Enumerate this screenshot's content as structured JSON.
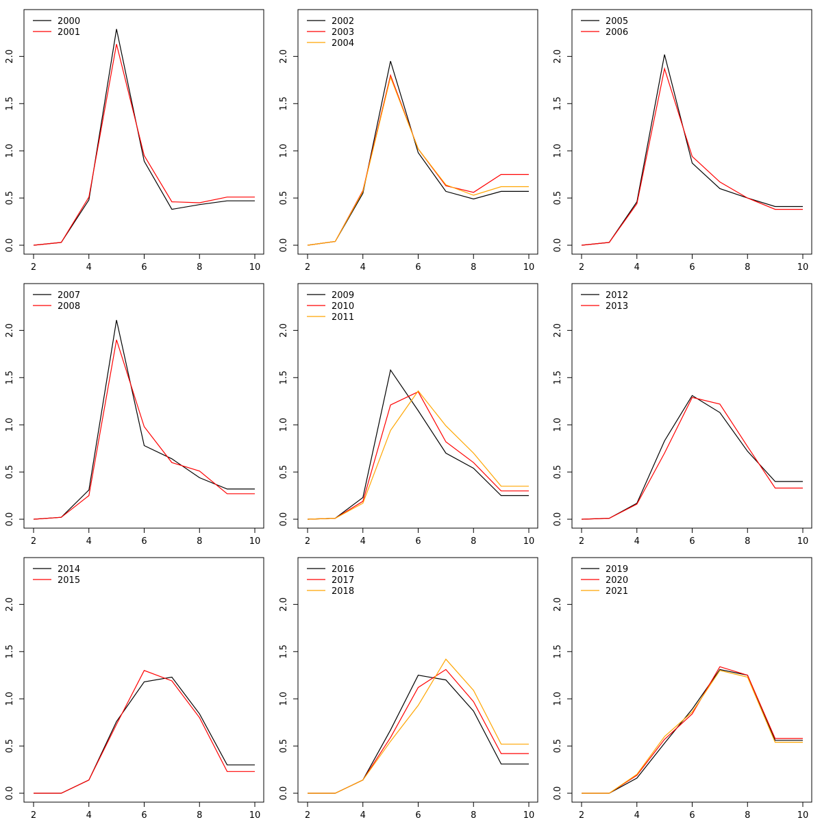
{
  "colors": {
    "black": "#000000",
    "red": "#ff0000",
    "orange": "#ffa500"
  },
  "chart_data": [
    {
      "type": "line",
      "title": "",
      "xlabel": "",
      "ylabel": "",
      "xlim": [
        2,
        10
      ],
      "ylim": [
        0,
        2.3
      ],
      "xticks": [
        "2",
        "4",
        "6",
        "8",
        "10"
      ],
      "yticks": [
        "0.0",
        "0.5",
        "1.0",
        "1.5",
        "2.0"
      ],
      "grid": false,
      "legend": "top-left",
      "x": [
        2,
        3,
        4,
        5,
        6,
        7,
        8,
        9,
        10
      ],
      "series": [
        {
          "name": "2000",
          "color": "#000000",
          "values": [
            0.0,
            0.03,
            0.48,
            2.29,
            0.89,
            0.38,
            0.43,
            0.47,
            0.47
          ]
        },
        {
          "name": "2001",
          "color": "#ff0000",
          "values": [
            0.0,
            0.03,
            0.51,
            2.13,
            0.95,
            0.46,
            0.45,
            0.51,
            0.51
          ]
        }
      ]
    },
    {
      "type": "line",
      "title": "",
      "xlabel": "",
      "ylabel": "",
      "xlim": [
        2,
        10
      ],
      "ylim": [
        0,
        2.3
      ],
      "xticks": [
        "2",
        "4",
        "6",
        "8",
        "10"
      ],
      "yticks": [
        "0.0",
        "0.5",
        "1.0",
        "1.5",
        "2.0"
      ],
      "grid": false,
      "legend": "top-left",
      "x": [
        2,
        3,
        4,
        5,
        6,
        7,
        8,
        9,
        10
      ],
      "series": [
        {
          "name": "2002",
          "color": "#000000",
          "values": [
            0.0,
            0.04,
            0.55,
            1.95,
            0.98,
            0.57,
            0.49,
            0.57,
            0.57
          ]
        },
        {
          "name": "2003",
          "color": "#ff0000",
          "values": [
            0.0,
            0.04,
            0.58,
            1.8,
            1.02,
            0.63,
            0.56,
            0.75,
            0.75
          ]
        },
        {
          "name": "2004",
          "color": "#ffa500",
          "values": [
            0.0,
            0.04,
            0.57,
            1.78,
            1.02,
            0.64,
            0.53,
            0.62,
            0.62
          ]
        }
      ]
    },
    {
      "type": "line",
      "title": "",
      "xlabel": "",
      "ylabel": "",
      "xlim": [
        2,
        10
      ],
      "ylim": [
        0,
        2.3
      ],
      "xticks": [
        "2",
        "4",
        "6",
        "8",
        "10"
      ],
      "yticks": [
        "0.0",
        "0.5",
        "1.0",
        "1.5",
        "2.0"
      ],
      "grid": false,
      "legend": "top-left",
      "x": [
        2,
        3,
        4,
        5,
        6,
        7,
        8,
        9,
        10
      ],
      "series": [
        {
          "name": "2005",
          "color": "#000000",
          "values": [
            0.0,
            0.03,
            0.46,
            2.02,
            0.87,
            0.6,
            0.5,
            0.41,
            0.41
          ]
        },
        {
          "name": "2006",
          "color": "#ff0000",
          "values": [
            0.0,
            0.03,
            0.44,
            1.87,
            0.94,
            0.67,
            0.5,
            0.38,
            0.38
          ]
        }
      ]
    },
    {
      "type": "line",
      "title": "",
      "xlabel": "",
      "ylabel": "",
      "xlim": [
        2,
        10
      ],
      "ylim": [
        0,
        2.3
      ],
      "xticks": [
        "2",
        "4",
        "6",
        "8",
        "10"
      ],
      "yticks": [
        "0.0",
        "0.5",
        "1.0",
        "1.5",
        "2.0"
      ],
      "grid": false,
      "legend": "top-left",
      "x": [
        2,
        3,
        4,
        5,
        6,
        7,
        8,
        9,
        10
      ],
      "series": [
        {
          "name": "2007",
          "color": "#000000",
          "values": [
            0.0,
            0.02,
            0.31,
            2.11,
            0.78,
            0.64,
            0.44,
            0.32,
            0.32
          ]
        },
        {
          "name": "2008",
          "color": "#ff0000",
          "values": [
            0.0,
            0.02,
            0.25,
            1.9,
            0.98,
            0.6,
            0.51,
            0.27,
            0.27
          ]
        }
      ]
    },
    {
      "type": "line",
      "title": "",
      "xlabel": "",
      "ylabel": "",
      "xlim": [
        2,
        10
      ],
      "ylim": [
        0,
        2.3
      ],
      "xticks": [
        "2",
        "4",
        "6",
        "8",
        "10"
      ],
      "yticks": [
        "0.0",
        "0.5",
        "1.0",
        "1.5",
        "2.0"
      ],
      "grid": false,
      "legend": "top-left",
      "x": [
        2,
        3,
        4,
        5,
        6,
        7,
        8,
        9,
        10
      ],
      "series": [
        {
          "name": "2009",
          "color": "#000000",
          "values": [
            0.0,
            0.01,
            0.23,
            1.58,
            1.15,
            0.7,
            0.54,
            0.25,
            0.25
          ]
        },
        {
          "name": "2010",
          "color": "#ff0000",
          "values": [
            0.0,
            0.01,
            0.19,
            1.21,
            1.35,
            0.82,
            0.6,
            0.3,
            0.3
          ]
        },
        {
          "name": "2011",
          "color": "#ffa500",
          "values": [
            0.0,
            0.01,
            0.17,
            0.94,
            1.36,
            0.99,
            0.7,
            0.35,
            0.35
          ]
        }
      ]
    },
    {
      "type": "line",
      "title": "",
      "xlabel": "",
      "ylabel": "",
      "xlim": [
        2,
        10
      ],
      "ylim": [
        0,
        2.3
      ],
      "xticks": [
        "2",
        "4",
        "6",
        "8",
        "10"
      ],
      "yticks": [
        "0.0",
        "0.5",
        "1.0",
        "1.5",
        "2.0"
      ],
      "grid": false,
      "legend": "top-left",
      "x": [
        2,
        3,
        4,
        5,
        6,
        7,
        8,
        9,
        10
      ],
      "series": [
        {
          "name": "2012",
          "color": "#000000",
          "values": [
            0.0,
            0.01,
            0.17,
            0.83,
            1.31,
            1.13,
            0.72,
            0.4,
            0.4
          ]
        },
        {
          "name": "2013",
          "color": "#ff0000",
          "values": [
            0.0,
            0.01,
            0.16,
            0.7,
            1.29,
            1.22,
            0.77,
            0.33,
            0.33
          ]
        }
      ]
    },
    {
      "type": "line",
      "title": "",
      "xlabel": "",
      "ylabel": "",
      "xlim": [
        2,
        10
      ],
      "ylim": [
        0,
        2.3
      ],
      "xticks": [
        "2",
        "4",
        "6",
        "8",
        "10"
      ],
      "yticks": [
        "0.0",
        "0.5",
        "1.0",
        "1.5",
        "2.0"
      ],
      "grid": false,
      "legend": "top-left",
      "x": [
        2,
        3,
        4,
        5,
        6,
        7,
        8,
        9,
        10
      ],
      "series": [
        {
          "name": "2014",
          "color": "#000000",
          "values": [
            0.0,
            0.0,
            0.14,
            0.76,
            1.18,
            1.23,
            0.84,
            0.3,
            0.3
          ]
        },
        {
          "name": "2015",
          "color": "#ff0000",
          "values": [
            0.0,
            0.0,
            0.14,
            0.73,
            1.3,
            1.19,
            0.8,
            0.23,
            0.23
          ]
        }
      ]
    },
    {
      "type": "line",
      "title": "",
      "xlabel": "",
      "ylabel": "",
      "xlim": [
        2,
        10
      ],
      "ylim": [
        0,
        2.3
      ],
      "xticks": [
        "2",
        "4",
        "6",
        "8",
        "10"
      ],
      "yticks": [
        "0.0",
        "0.5",
        "1.0",
        "1.5",
        "2.0"
      ],
      "grid": false,
      "legend": "top-left",
      "x": [
        2,
        3,
        4,
        5,
        6,
        7,
        8,
        9,
        10
      ],
      "series": [
        {
          "name": "2016",
          "color": "#000000",
          "values": [
            0.0,
            0.0,
            0.14,
            0.67,
            1.25,
            1.2,
            0.87,
            0.31,
            0.31
          ]
        },
        {
          "name": "2017",
          "color": "#ff0000",
          "values": [
            0.0,
            0.0,
            0.14,
            0.59,
            1.12,
            1.31,
            0.97,
            0.42,
            0.42
          ]
        },
        {
          "name": "2018",
          "color": "#ffa500",
          "values": [
            0.0,
            0.0,
            0.14,
            0.55,
            0.93,
            1.42,
            1.09,
            0.52,
            0.52
          ]
        }
      ]
    },
    {
      "type": "line",
      "title": "",
      "xlabel": "",
      "ylabel": "",
      "xlim": [
        2,
        10
      ],
      "ylim": [
        0,
        2.3
      ],
      "xticks": [
        "2",
        "4",
        "6",
        "8",
        "10"
      ],
      "yticks": [
        "0.0",
        "0.5",
        "1.0",
        "1.5",
        "2.0"
      ],
      "grid": false,
      "legend": "top-left",
      "x": [
        2,
        3,
        4,
        5,
        6,
        7,
        8,
        9,
        10
      ],
      "series": [
        {
          "name": "2019",
          "color": "#000000",
          "values": [
            0.0,
            0.0,
            0.16,
            0.53,
            0.89,
            1.31,
            1.25,
            0.56,
            0.56
          ]
        },
        {
          "name": "2020",
          "color": "#ff0000",
          "values": [
            0.0,
            0.0,
            0.19,
            0.57,
            0.84,
            1.34,
            1.25,
            0.58,
            0.58
          ]
        },
        {
          "name": "2021",
          "color": "#ffa500",
          "values": [
            0.0,
            0.0,
            0.2,
            0.6,
            0.86,
            1.3,
            1.23,
            0.54,
            0.54
          ]
        }
      ]
    }
  ]
}
